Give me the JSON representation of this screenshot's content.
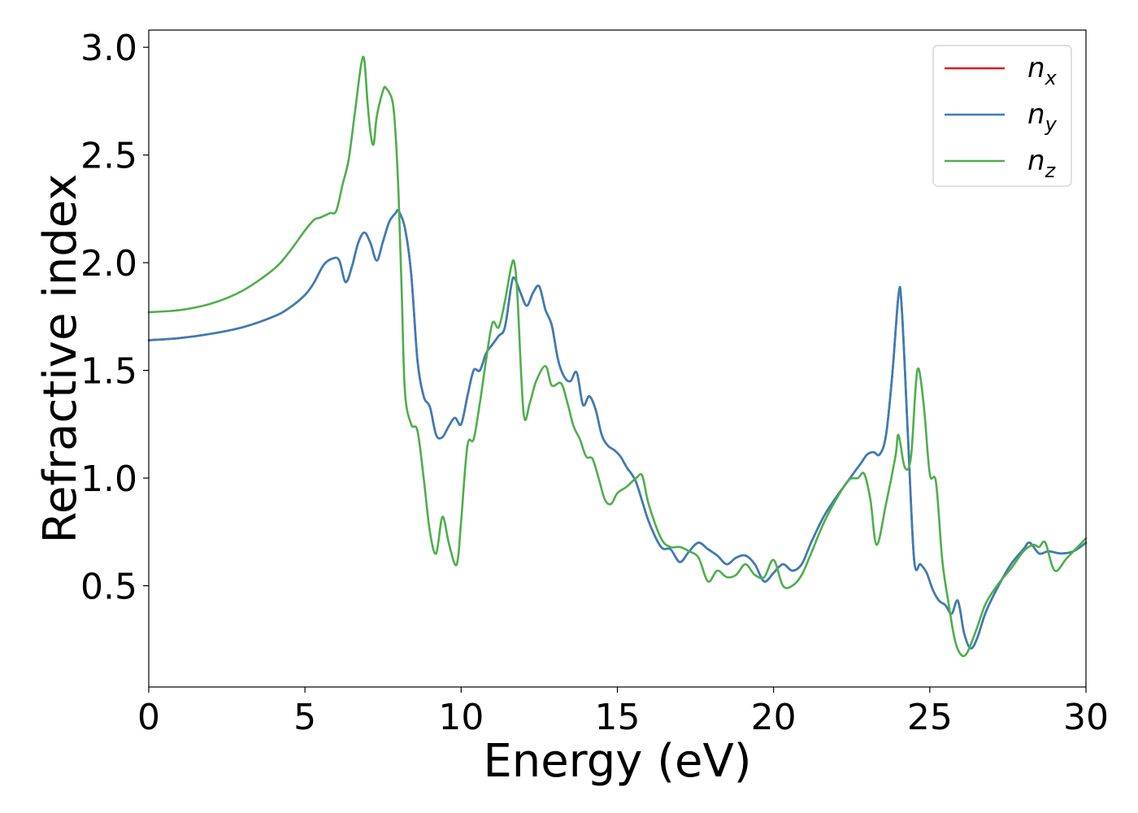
{
  "chart_data": {
    "type": "line",
    "title": "",
    "xlabel": "Energy (eV)",
    "ylabel": "Refractive index",
    "xlim": [
      0,
      30
    ],
    "ylim": [
      0.03,
      3.08
    ],
    "xticks": [
      0,
      5,
      10,
      15,
      20,
      25,
      30
    ],
    "xtick_labels": [
      "0",
      "5",
      "10",
      "15",
      "20",
      "25",
      "30"
    ],
    "yticks": [
      0.5,
      1.0,
      1.5,
      2.0,
      2.5,
      3.0
    ],
    "ytick_labels": [
      "0.5",
      "1.0",
      "1.5",
      "2.0",
      "2.5",
      "3.0"
    ],
    "grid": false,
    "legend_position": "top-right",
    "series": [
      {
        "name": "n_x",
        "legend_base": "n",
        "legend_sub": "x",
        "color": "#e41a1c",
        "x": [
          0,
          1,
          2,
          3,
          4,
          4.5,
          5,
          5.3,
          5.6,
          5.9,
          6.1,
          6.3,
          6.5,
          6.7,
          6.9,
          7.1,
          7.3,
          7.5,
          7.7,
          7.9,
          8.0,
          8.2,
          8.4,
          8.6,
          8.8,
          9.0,
          9.2,
          9.4,
          9.6,
          9.8,
          10.0,
          10.2,
          10.4,
          10.6,
          10.8,
          11.0,
          11.2,
          11.4,
          11.6,
          11.7,
          11.9,
          12.1,
          12.3,
          12.5,
          12.7,
          12.9,
          13.1,
          13.3,
          13.5,
          13.7,
          13.9,
          14.1,
          14.3,
          14.5,
          14.7,
          14.9,
          15.1,
          15.3,
          15.6,
          16.0,
          16.4,
          16.7,
          17.0,
          17.3,
          17.6,
          17.9,
          18.2,
          18.5,
          18.8,
          19.1,
          19.4,
          19.7,
          20.0,
          20.3,
          20.6,
          20.9,
          21.2,
          21.6,
          22.0,
          22.4,
          22.8,
          23.0,
          23.2,
          23.4,
          23.6,
          23.8,
          24.0,
          24.1,
          24.3,
          24.5,
          24.7,
          24.9,
          25.1,
          25.3,
          25.5,
          25.7,
          25.9,
          26.1,
          26.3,
          26.5,
          26.8,
          27.2,
          27.6,
          28.0,
          28.2,
          28.5,
          28.8,
          29.2,
          29.6,
          30.0
        ],
        "y": [
          1.64,
          1.65,
          1.67,
          1.7,
          1.75,
          1.79,
          1.85,
          1.91,
          1.99,
          2.02,
          2.01,
          1.91,
          1.98,
          2.09,
          2.14,
          2.09,
          2.01,
          2.1,
          2.19,
          2.23,
          2.24,
          2.16,
          1.95,
          1.55,
          1.38,
          1.33,
          1.2,
          1.19,
          1.24,
          1.28,
          1.25,
          1.38,
          1.5,
          1.5,
          1.58,
          1.62,
          1.66,
          1.7,
          1.89,
          1.93,
          1.86,
          1.8,
          1.86,
          1.89,
          1.78,
          1.71,
          1.55,
          1.47,
          1.45,
          1.49,
          1.34,
          1.38,
          1.32,
          1.2,
          1.15,
          1.13,
          1.1,
          1.05,
          0.98,
          0.8,
          0.68,
          0.67,
          0.61,
          0.66,
          0.7,
          0.67,
          0.64,
          0.6,
          0.63,
          0.64,
          0.6,
          0.52,
          0.56,
          0.6,
          0.57,
          0.6,
          0.7,
          0.82,
          0.91,
          0.99,
          1.07,
          1.11,
          1.12,
          1.11,
          1.2,
          1.48,
          1.85,
          1.8,
          1.2,
          0.62,
          0.6,
          0.56,
          0.48,
          0.43,
          0.41,
          0.37,
          0.43,
          0.28,
          0.21,
          0.25,
          0.38,
          0.5,
          0.6,
          0.67,
          0.7,
          0.65,
          0.66,
          0.65,
          0.66,
          0.7
        ]
      },
      {
        "name": "n_y",
        "legend_base": "n",
        "legend_sub": "y",
        "color": "#377eb8",
        "x": [
          0,
          1,
          2,
          3,
          4,
          4.5,
          5,
          5.3,
          5.6,
          5.9,
          6.1,
          6.3,
          6.5,
          6.7,
          6.9,
          7.1,
          7.3,
          7.5,
          7.7,
          7.9,
          8.0,
          8.2,
          8.4,
          8.6,
          8.8,
          9.0,
          9.2,
          9.4,
          9.6,
          9.8,
          10.0,
          10.2,
          10.4,
          10.6,
          10.8,
          11.0,
          11.2,
          11.4,
          11.6,
          11.7,
          11.9,
          12.1,
          12.3,
          12.5,
          12.7,
          12.9,
          13.1,
          13.3,
          13.5,
          13.7,
          13.9,
          14.1,
          14.3,
          14.5,
          14.7,
          14.9,
          15.1,
          15.3,
          15.6,
          16.0,
          16.4,
          16.7,
          17.0,
          17.3,
          17.6,
          17.9,
          18.2,
          18.5,
          18.8,
          19.1,
          19.4,
          19.7,
          20.0,
          20.3,
          20.6,
          20.9,
          21.2,
          21.6,
          22.0,
          22.4,
          22.8,
          23.0,
          23.2,
          23.4,
          23.6,
          23.8,
          24.0,
          24.1,
          24.3,
          24.5,
          24.7,
          24.9,
          25.1,
          25.3,
          25.5,
          25.7,
          25.9,
          26.1,
          26.3,
          26.5,
          26.8,
          27.2,
          27.6,
          28.0,
          28.2,
          28.5,
          28.8,
          29.2,
          29.6,
          30.0
        ],
        "y": [
          1.64,
          1.65,
          1.67,
          1.7,
          1.75,
          1.79,
          1.85,
          1.91,
          1.99,
          2.02,
          2.01,
          1.91,
          1.98,
          2.09,
          2.14,
          2.09,
          2.01,
          2.1,
          2.19,
          2.23,
          2.24,
          2.16,
          1.95,
          1.55,
          1.38,
          1.33,
          1.2,
          1.19,
          1.24,
          1.28,
          1.25,
          1.38,
          1.5,
          1.5,
          1.58,
          1.62,
          1.66,
          1.7,
          1.89,
          1.93,
          1.86,
          1.8,
          1.86,
          1.89,
          1.78,
          1.71,
          1.55,
          1.47,
          1.45,
          1.49,
          1.34,
          1.38,
          1.32,
          1.2,
          1.15,
          1.13,
          1.1,
          1.05,
          0.98,
          0.8,
          0.68,
          0.67,
          0.61,
          0.66,
          0.7,
          0.67,
          0.64,
          0.6,
          0.63,
          0.64,
          0.6,
          0.52,
          0.56,
          0.6,
          0.57,
          0.6,
          0.7,
          0.82,
          0.91,
          0.99,
          1.07,
          1.11,
          1.12,
          1.11,
          1.2,
          1.48,
          1.85,
          1.8,
          1.2,
          0.62,
          0.6,
          0.56,
          0.48,
          0.43,
          0.41,
          0.37,
          0.43,
          0.28,
          0.21,
          0.25,
          0.38,
          0.5,
          0.6,
          0.67,
          0.7,
          0.65,
          0.66,
          0.65,
          0.66,
          0.7
        ]
      },
      {
        "name": "n_z",
        "legend_base": "n",
        "legend_sub": "z",
        "color": "#4daf4a",
        "x": [
          0,
          1,
          2,
          3,
          4,
          4.5,
          5,
          5.3,
          5.5,
          5.8,
          6.0,
          6.2,
          6.4,
          6.6,
          6.8,
          6.9,
          7.0,
          7.1,
          7.2,
          7.3,
          7.5,
          7.6,
          7.8,
          7.9,
          8.0,
          8.1,
          8.2,
          8.4,
          8.6,
          8.8,
          9.0,
          9.2,
          9.4,
          9.6,
          9.8,
          9.9,
          10.0,
          10.2,
          10.4,
          10.6,
          10.8,
          11.0,
          11.2,
          11.4,
          11.6,
          11.7,
          11.8,
          12.0,
          12.2,
          12.4,
          12.7,
          12.9,
          13.2,
          13.4,
          13.6,
          13.8,
          14.0,
          14.2,
          14.4,
          14.6,
          14.8,
          15.0,
          15.3,
          15.6,
          15.8,
          16.0,
          16.4,
          16.7,
          17.0,
          17.3,
          17.6,
          17.9,
          18.2,
          18.5,
          18.8,
          19.1,
          19.4,
          19.7,
          20.0,
          20.3,
          20.6,
          20.9,
          21.2,
          21.6,
          22.0,
          22.4,
          22.7,
          22.9,
          23.1,
          23.3,
          23.6,
          23.9,
          24.0,
          24.2,
          24.4,
          24.6,
          24.8,
          25.0,
          25.2,
          25.4,
          25.6,
          25.8,
          26.0,
          26.2,
          26.5,
          26.8,
          27.2,
          27.6,
          28.0,
          28.3,
          28.5,
          28.7,
          29.0,
          29.4,
          30.0
        ],
        "y": [
          1.77,
          1.78,
          1.81,
          1.87,
          1.97,
          2.05,
          2.15,
          2.2,
          2.21,
          2.23,
          2.24,
          2.36,
          2.48,
          2.7,
          2.92,
          2.94,
          2.75,
          2.6,
          2.55,
          2.68,
          2.8,
          2.81,
          2.75,
          2.6,
          2.3,
          1.85,
          1.4,
          1.25,
          1.22,
          1.0,
          0.75,
          0.65,
          0.82,
          0.7,
          0.6,
          0.63,
          0.8,
          1.15,
          1.18,
          1.35,
          1.55,
          1.72,
          1.7,
          1.82,
          1.98,
          2.0,
          1.85,
          1.3,
          1.35,
          1.45,
          1.52,
          1.43,
          1.44,
          1.35,
          1.24,
          1.18,
          1.1,
          1.09,
          1.0,
          0.9,
          0.88,
          0.93,
          0.96,
          1.0,
          1.01,
          0.88,
          0.72,
          0.68,
          0.68,
          0.66,
          0.63,
          0.52,
          0.57,
          0.54,
          0.55,
          0.6,
          0.55,
          0.54,
          0.62,
          0.5,
          0.5,
          0.55,
          0.65,
          0.79,
          0.9,
          0.99,
          1.0,
          1.02,
          0.9,
          0.69,
          0.88,
          1.1,
          1.2,
          1.05,
          1.1,
          1.5,
          1.35,
          1.02,
          0.98,
          0.62,
          0.42,
          0.25,
          0.18,
          0.19,
          0.3,
          0.42,
          0.51,
          0.58,
          0.66,
          0.69,
          0.68,
          0.7,
          0.57,
          0.63,
          0.72
        ]
      }
    ]
  }
}
